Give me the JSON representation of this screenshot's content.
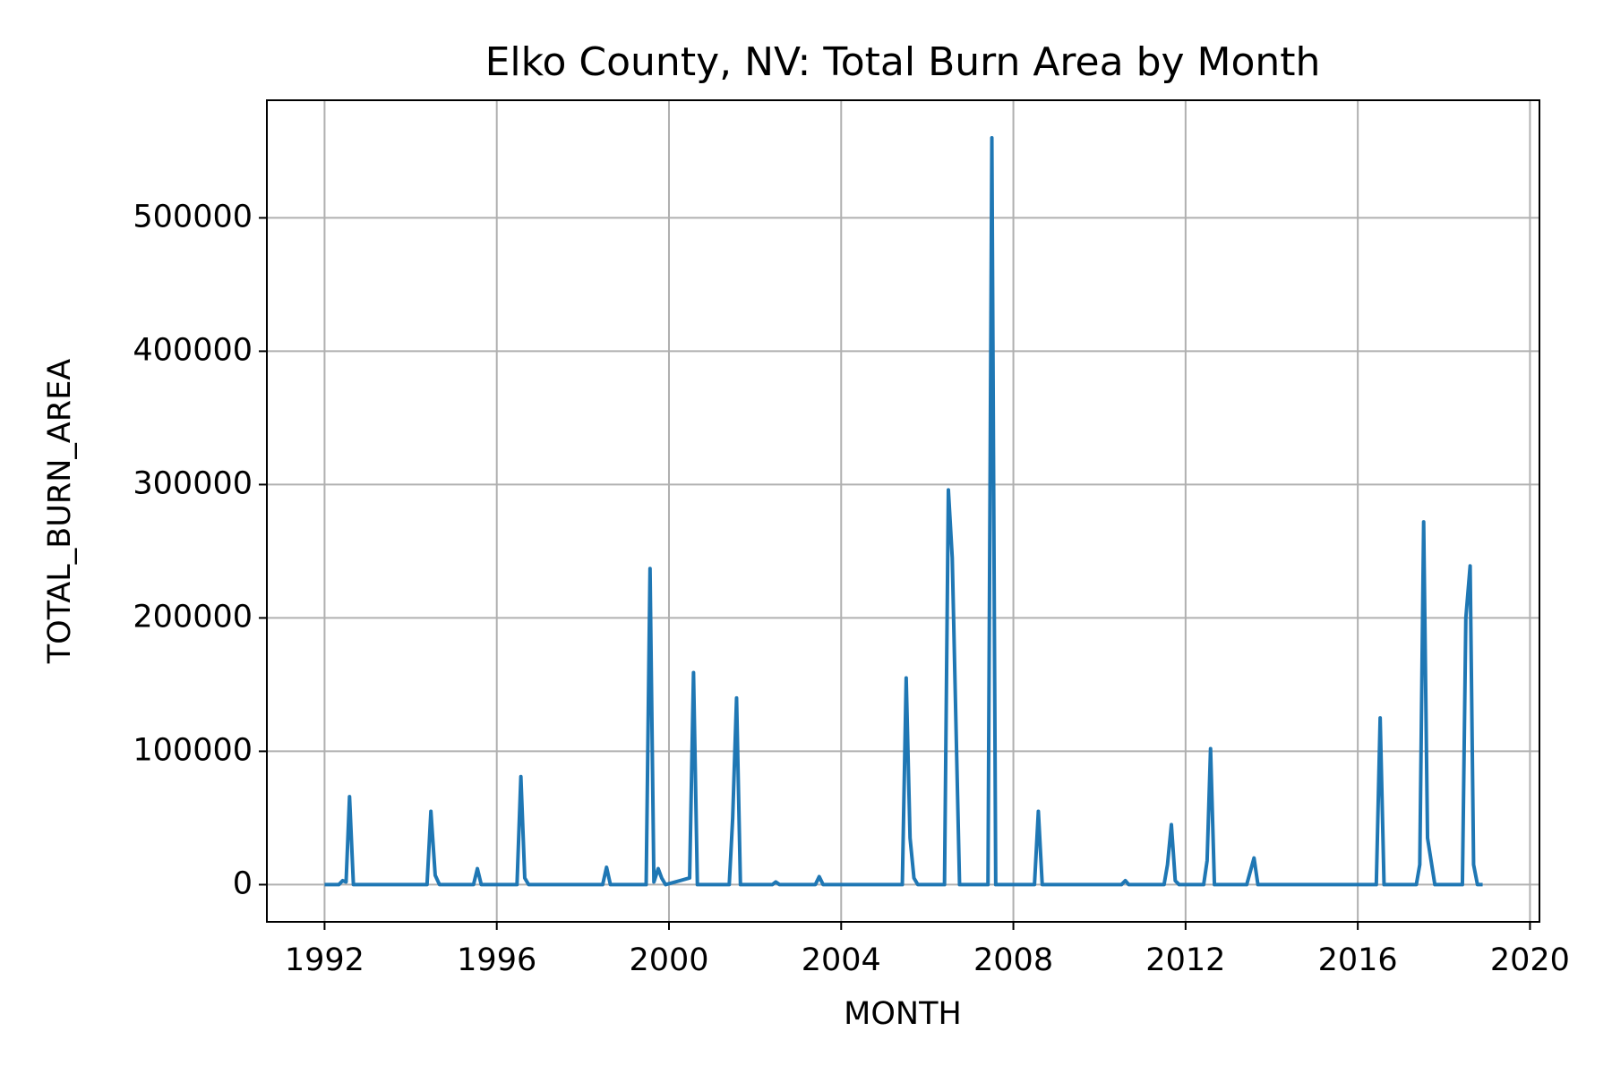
{
  "chart_data": {
    "type": "line",
    "title": "Elko County, NV: Total Burn Area by Month",
    "x_label": "MONTH",
    "y_label": "TOTAL_BURN_AREA",
    "color": "#1f77b4",
    "grid": true,
    "xlim": [
      1990.66,
      2020.22
    ],
    "ylim": [
      -27900,
      588200
    ],
    "xticks": [
      1992,
      1996,
      2000,
      2004,
      2008,
      2012,
      2016,
      2020
    ],
    "yticks": [
      0,
      100000,
      200000,
      300000,
      400000,
      500000
    ],
    "x": [
      1992.0,
      1992.33,
      1992.42,
      1992.5,
      1992.58,
      1992.67,
      1994.38,
      1994.47,
      1994.57,
      1994.67,
      1995.46,
      1995.55,
      1995.64,
      1996.47,
      1996.56,
      1996.65,
      1996.74,
      1998.46,
      1998.55,
      1998.64,
      1999.47,
      1999.56,
      1999.65,
      1999.75,
      1999.83,
      1999.92,
      2000.48,
      2000.57,
      2000.66,
      2001.4,
      2001.48,
      2001.57,
      2001.66,
      2002.4,
      2002.48,
      2002.57,
      2003.4,
      2003.49,
      2003.58,
      2005.42,
      2005.51,
      2005.6,
      2005.69,
      2005.78,
      2006.4,
      2006.49,
      2006.58,
      2006.75,
      2007.41,
      2007.5,
      2007.59,
      2008.49,
      2008.58,
      2008.67,
      2010.51,
      2010.6,
      2010.68,
      2011.5,
      2011.58,
      2011.67,
      2011.76,
      2011.85,
      2012.42,
      2012.5,
      2012.58,
      2012.67,
      2013.42,
      2013.59,
      2013.68,
      2016.43,
      2016.52,
      2016.61,
      2017.36,
      2017.44,
      2017.53,
      2017.62,
      2017.79,
      2018.35,
      2018.43,
      2018.51,
      2018.61,
      2018.69,
      2018.78,
      2018.9
    ],
    "values": [
      0,
      0,
      3000,
      2000,
      66000,
      0,
      0,
      55000,
      7000,
      0,
      0,
      12000,
      0,
      0,
      81000,
      5000,
      0,
      0,
      13000,
      0,
      0,
      237000,
      2000,
      12000,
      5000,
      0,
      5000,
      159000,
      0,
      0,
      50000,
      140000,
      0,
      0,
      2000,
      0,
      0,
      6000,
      0,
      0,
      155000,
      35000,
      5000,
      0,
      0,
      296000,
      245000,
      0,
      0,
      560000,
      0,
      0,
      55000,
      0,
      0,
      3000,
      0,
      0,
      15000,
      45000,
      3000,
      0,
      0,
      18000,
      102000,
      0,
      0,
      20000,
      0,
      0,
      125000,
      0,
      0,
      15000,
      272000,
      35000,
      0,
      0,
      0,
      200000,
      239000,
      15000,
      0,
      0
    ]
  }
}
